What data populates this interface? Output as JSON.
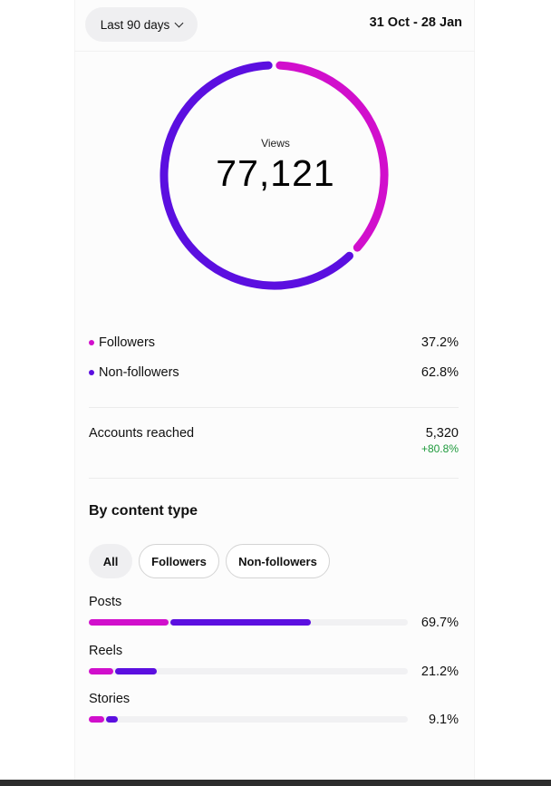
{
  "header": {
    "range_label": "Last 90 days",
    "date_range": "31 Oct - 28 Jan"
  },
  "views": {
    "label": "Views",
    "value": "77,121"
  },
  "audience": [
    {
      "label": "Followers",
      "pct_text": "37.2%",
      "pct": 37.2,
      "color": "#d10fcc"
    },
    {
      "label": "Non-followers",
      "pct_text": "62.8%",
      "pct": 62.8,
      "color": "#5b0fe0"
    }
  ],
  "reach": {
    "label": "Accounts reached",
    "value": "5,320",
    "change": "+80.8%"
  },
  "content": {
    "title": "By content type",
    "filters": [
      {
        "label": "All",
        "active": true
      },
      {
        "label": "Followers",
        "active": false
      },
      {
        "label": "Non-followers",
        "active": false
      }
    ],
    "types": [
      {
        "label": "Posts",
        "pct_text": "69.7%",
        "pct": 69.7,
        "followers_share": 0.36
      },
      {
        "label": "Reels",
        "pct_text": "21.2%",
        "pct": 21.2,
        "followers_share": 0.36
      },
      {
        "label": "Stories",
        "pct_text": "9.1%",
        "pct": 9.1,
        "followers_share": 0.52
      }
    ]
  },
  "colors": {
    "followers": "#d10fcc",
    "non_followers": "#5b0fe0",
    "positive_change": "#1e9a3c"
  },
  "icons": {
    "range_dropdown": "chevron-down-icon"
  }
}
